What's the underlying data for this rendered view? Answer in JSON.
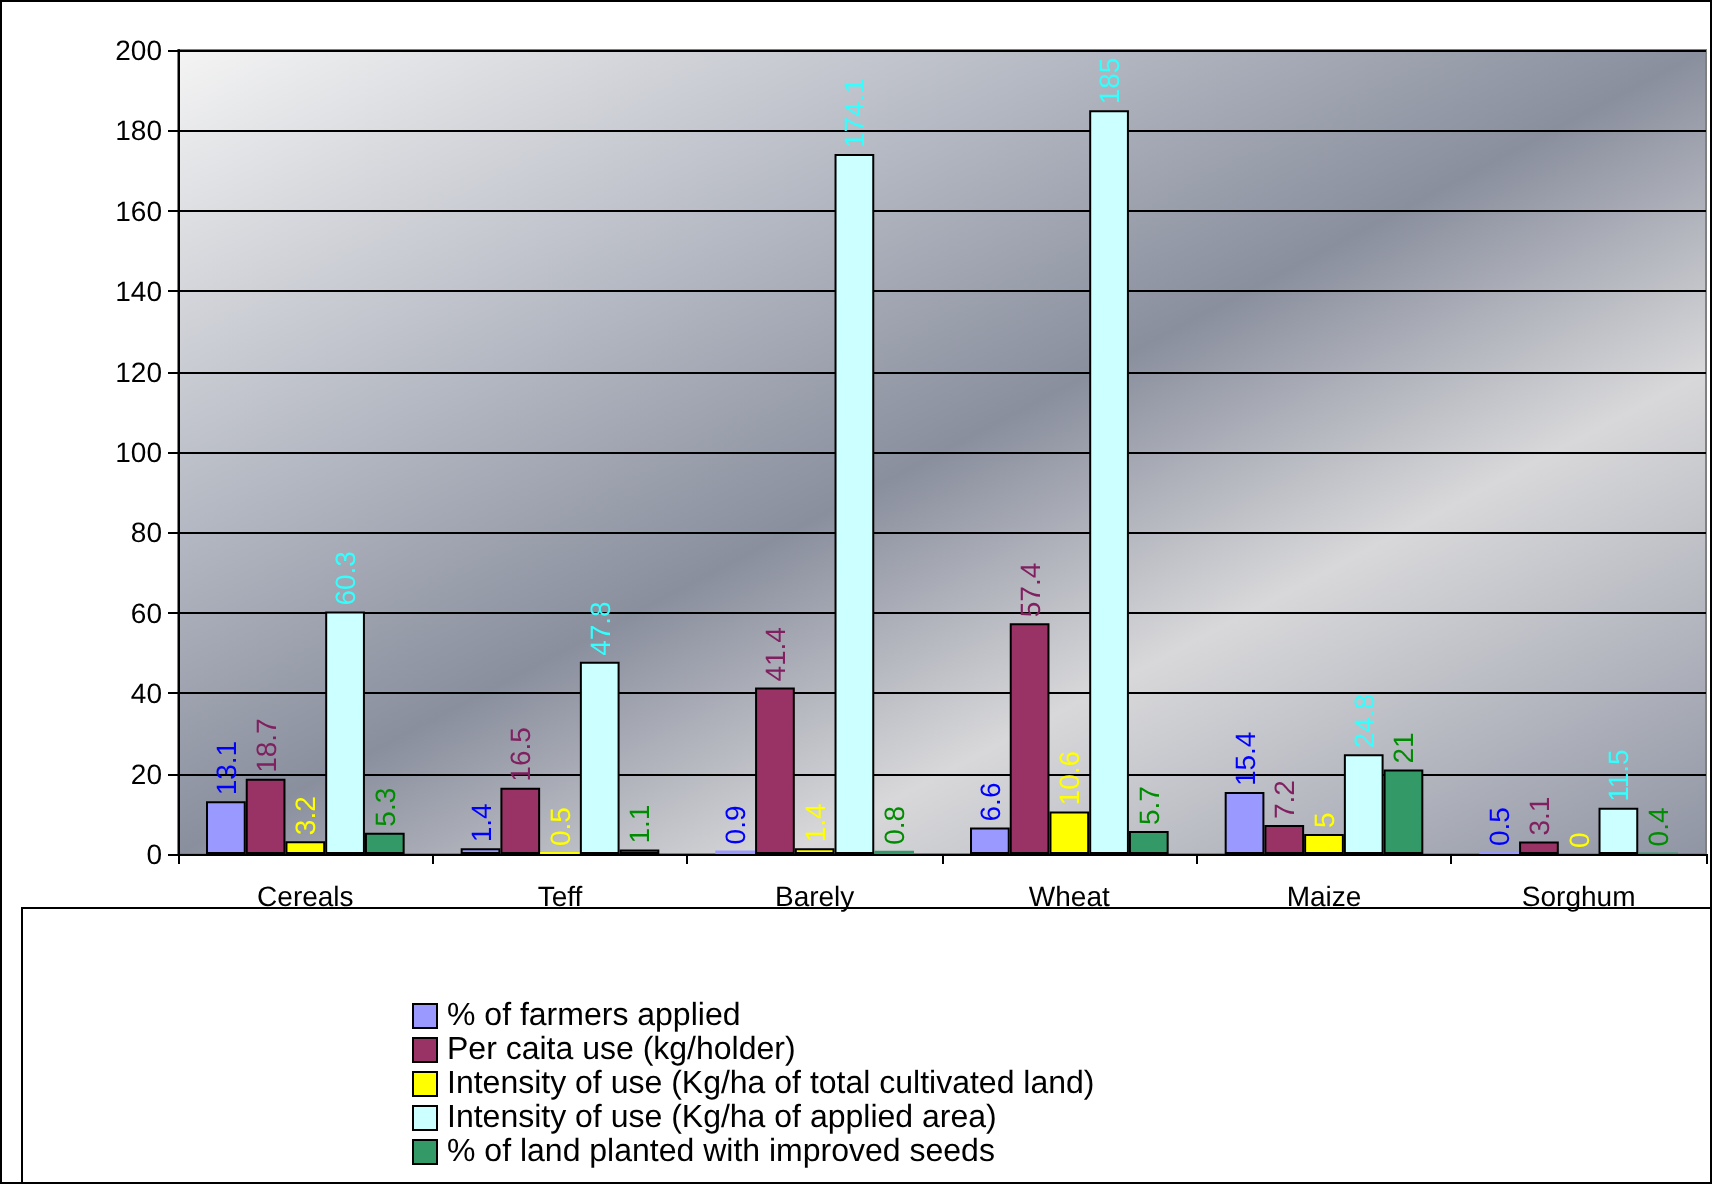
{
  "chart_data": {
    "type": "bar",
    "categories": [
      "Cereals",
      "Teff",
      "Barely",
      "Wheat",
      "Maize",
      "Sorghum"
    ],
    "series": [
      {
        "name": "% of farmers applied",
        "color": "#9999ff",
        "values": [
          13.1,
          1.4,
          0.9,
          6.6,
          15.4,
          0.5
        ]
      },
      {
        "name": "Per caita use (kg/holder)",
        "color": "#993366",
        "values": [
          18.7,
          16.5,
          41.4,
          57.4,
          7.2,
          3.1
        ]
      },
      {
        "name": "Intensity of use (Kg/ha of total cultivated land)",
        "color": "#ffff00",
        "values": [
          3.2,
          0.5,
          1.4,
          10.6,
          5,
          0
        ]
      },
      {
        "name": "Intensity of use (Kg/ha of applied area)",
        "color": "#ccffff",
        "values": [
          60.3,
          47.8,
          174.1,
          185,
          24.8,
          11.5
        ]
      },
      {
        "name": "% of land planted with improved seeds",
        "color": "#339966",
        "values": [
          5.3,
          1.1,
          0.8,
          5.7,
          21,
          0.4
        ]
      }
    ],
    "ylim": [
      0,
      200
    ],
    "yticks": [
      0,
      20,
      40,
      60,
      80,
      100,
      120,
      140,
      160,
      180,
      200
    ],
    "grid": "y",
    "legend": "bottom",
    "data_labels": true
  }
}
